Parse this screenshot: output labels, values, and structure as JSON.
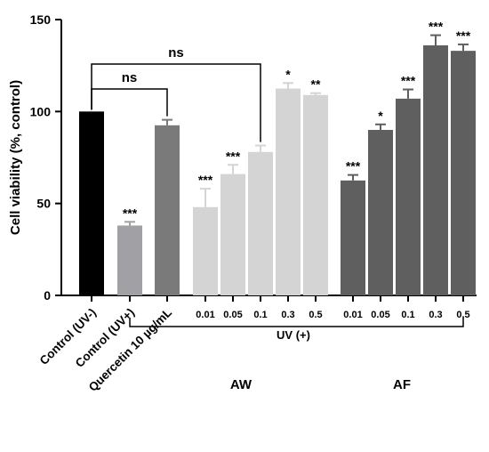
{
  "chart_data": {
    "type": "bar",
    "title": "",
    "ylabel": "Cell viability (%, control)",
    "ylim": [
      0,
      150
    ],
    "yticks": [
      0,
      50,
      100,
      150
    ],
    "grid": false,
    "colors": {
      "control_uv_minus": "#000000",
      "control_uv_plus": "#a1a1a5",
      "quercetin": "#7a7a7a",
      "aw": "#d4d4d4",
      "af": "#5f5f5f"
    },
    "categories_labeled": [
      "Control (UV-)",
      "Control (UV+)",
      "Quercetin 10 µg/mL"
    ],
    "group_labels": [
      "AW",
      "AF"
    ],
    "uv_label": "UV (+)",
    "bars": [
      {
        "label": "Control (UV-)",
        "group": "control",
        "value": 100,
        "err": 0,
        "sig": ""
      },
      {
        "label": "Control (UV+)",
        "group": "control",
        "value": 38,
        "err": 2,
        "sig": "***"
      },
      {
        "label": "Quercetin 10 µg/mL",
        "group": "control",
        "value": 92.5,
        "err": 3,
        "sig": ""
      },
      {
        "label": "0.01",
        "group": "AW",
        "value": 48,
        "err": 10,
        "sig": "***"
      },
      {
        "label": "0.05",
        "group": "AW",
        "value": 66,
        "err": 5,
        "sig": "***"
      },
      {
        "label": "0.1",
        "group": "AW",
        "value": 78,
        "err": 3.5,
        "sig": ""
      },
      {
        "label": "0.3",
        "group": "AW",
        "value": 112.5,
        "err": 3,
        "sig": "*"
      },
      {
        "label": "0.5",
        "group": "AW",
        "value": 109,
        "err": 1,
        "sig": "**"
      },
      {
        "label": "0.01",
        "group": "AF",
        "value": 62.5,
        "err": 3,
        "sig": "***"
      },
      {
        "label": "0.05",
        "group": "AF",
        "value": 90,
        "err": 3,
        "sig": "*"
      },
      {
        "label": "0.1",
        "group": "AF",
        "value": 107,
        "err": 5,
        "sig": "***"
      },
      {
        "label": "0.3",
        "group": "AF",
        "value": 136,
        "err": 5.5,
        "sig": "***"
      },
      {
        "label": "0.5",
        "group": "AF",
        "value": 133,
        "err": 3.5,
        "sig": "***"
      }
    ],
    "comparisons": [
      {
        "from_bar": 0,
        "to_bar": 2,
        "label": "ns"
      },
      {
        "from_bar": 0,
        "to_bar": 5,
        "label": "ns"
      }
    ]
  }
}
